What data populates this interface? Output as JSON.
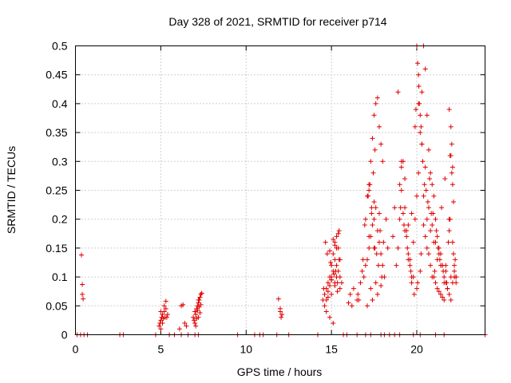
{
  "chart_data": {
    "type": "scatter",
    "title": "Day 328 of 2021, SRMTID for receiver p714",
    "xlabel": "GPS time / hours",
    "ylabel": "SRMTID / TECUs",
    "xlim": [
      0,
      24
    ],
    "ylim": [
      0,
      0.5
    ],
    "grid": true,
    "marker": "+",
    "xticks": [
      0,
      5,
      10,
      15,
      20
    ],
    "xtick_labels": [
      "0",
      "5",
      "10",
      "15",
      "20"
    ],
    "yticks": [
      0,
      0.05,
      0.1,
      0.15,
      0.2,
      0.25,
      0.3,
      0.35,
      0.4,
      0.45,
      0.5
    ],
    "ytick_labels": [
      "0",
      "0.05",
      "0.1",
      "0.15",
      "0.2",
      "0.25",
      "0.3",
      "0.35",
      "0.4",
      "0.45",
      "0.5"
    ],
    "series": [
      {
        "name": "SRMTID",
        "color": "#e00000",
        "x": [
          0.1,
          0.3,
          0.5,
          0.7,
          2.6,
          2.8,
          4.7,
          5.5,
          5.8,
          6.2,
          6.6,
          7.0,
          7.2,
          9.5,
          10.5,
          10.8,
          11.0,
          11.8,
          12.5,
          14.2,
          15.7,
          15.9,
          16.5,
          17.0,
          17.3,
          17.9,
          18.1,
          18.4,
          18.7,
          19.0,
          19.8,
          20.2,
          21.1,
          21.6,
          24.0,
          0.35,
          0.4,
          0.4,
          0.45,
          4.95,
          5.0,
          5.05,
          5.1,
          5.15,
          5.2,
          5.25,
          5.3,
          4.9,
          5.0,
          5.1,
          5.2,
          5.3,
          5.35,
          5.4,
          5.0,
          6.1,
          6.2,
          6.3,
          6.4,
          6.5,
          6.9,
          7.0,
          7.05,
          7.1,
          7.15,
          7.2,
          7.25,
          7.3,
          7.35,
          7.4,
          6.95,
          7.0,
          7.1,
          7.2,
          7.3,
          7.15,
          7.25,
          7.35,
          7.05,
          7.2,
          11.9,
          12.0,
          12.0,
          12.1,
          12.05,
          14.5,
          14.6,
          14.7,
          14.8,
          14.9,
          15.0,
          15.1,
          15.2,
          15.3,
          15.4,
          15.5,
          15.6,
          14.6,
          14.7,
          14.8,
          14.9,
          15.0,
          15.1,
          15.2,
          15.3,
          15.4,
          15.5,
          14.7,
          14.9,
          15.1,
          15.3,
          15.5,
          14.8,
          15.0,
          15.2,
          15.4,
          15.0,
          15.1,
          15.2,
          14.9,
          15.3,
          15.45,
          15.0,
          15.2,
          15.35,
          14.75,
          14.95,
          15.15,
          16.0,
          16.2,
          16.5,
          16.6,
          16.8,
          16.9,
          17.0,
          17.1,
          17.2,
          17.3,
          17.4,
          17.5,
          17.6,
          17.7,
          17.8,
          17.9,
          18.0,
          18.1,
          17.0,
          17.1,
          17.2,
          17.3,
          17.4,
          17.5,
          17.6,
          17.7,
          17.8,
          17.9,
          18.0,
          17.2,
          17.5,
          17.8,
          17.1,
          17.4,
          17.7,
          17.3,
          17.6,
          17.9,
          17.2,
          17.5,
          17.45,
          17.55,
          17.25,
          17.35,
          16.95,
          17.65,
          17.85,
          18.05,
          18.8,
          18.9,
          19.0,
          19.1,
          19.2,
          19.3,
          19.4,
          19.5,
          19.6,
          19.7,
          19.8,
          19.9,
          20.0,
          20.1,
          20.2,
          20.3,
          20.4,
          20.5,
          20.6,
          20.7,
          20.8,
          20.9,
          21.0,
          21.1,
          21.2,
          21.3,
          21.4,
          21.5,
          21.6,
          21.7,
          21.8,
          21.9,
          22.0,
          22.1,
          22.2,
          22.3,
          18.9,
          19.1,
          19.3,
          19.5,
          19.7,
          19.9,
          20.1,
          20.3,
          20.5,
          20.7,
          20.9,
          21.1,
          21.3,
          21.5,
          21.7,
          21.9,
          22.1,
          22.3,
          19.0,
          19.2,
          19.4,
          19.6,
          19.8,
          20.0,
          20.2,
          20.4,
          20.6,
          20.8,
          21.0,
          21.2,
          21.4,
          21.6,
          21.8,
          22.0,
          22.2,
          19.05,
          19.25,
          19.45,
          19.65,
          19.85,
          20.05,
          20.25,
          20.45,
          20.65,
          20.85,
          21.05,
          21.25,
          21.45,
          21.65,
          21.85,
          22.05,
          22.25,
          20.0,
          20.05,
          20.1,
          20.12,
          20.15,
          20.2,
          20.25,
          20.3,
          19.95,
          20.35,
          21.9,
          22.0,
          21.95,
          22.05,
          22.1,
          22.15,
          19.1,
          19.3,
          19.5,
          19.7,
          20.4,
          20.6,
          20.8,
          21.0,
          21.2,
          21.4,
          21.6,
          21.8,
          22.0,
          22.2,
          20.5,
          20.7,
          20.9,
          21.1,
          21.3,
          21.5,
          21.7,
          21.9,
          22.1,
          22.3,
          20.55,
          20.75,
          20.95,
          21.15,
          21.35,
          21.55,
          21.75,
          21.95,
          22.15,
          17.15,
          17.35,
          17.55,
          17.75,
          17.95,
          16.55,
          16.7,
          16.85,
          18.2,
          18.3,
          18.6,
          18.7,
          15.25,
          15.35,
          15.45,
          14.55,
          14.65,
          16.1,
          16.3
        ],
        "y": [
          0,
          0,
          0,
          0,
          0,
          0,
          0,
          0,
          0,
          0,
          0,
          0,
          0,
          0,
          0,
          0,
          0,
          0,
          0,
          0,
          0,
          0,
          0,
          0,
          0,
          0,
          0,
          0,
          0,
          0,
          0,
          0,
          0,
          0,
          0,
          0.138,
          0.087,
          0.07,
          0.062,
          0.02,
          0.025,
          0.03,
          0.035,
          0.028,
          0.04,
          0.03,
          0.045,
          0.015,
          0.01,
          0.02,
          0.05,
          0.058,
          0.03,
          0.035,
          0.04,
          0.01,
          0.05,
          0.052,
          0.02,
          0.015,
          0.03,
          0.04,
          0.035,
          0.045,
          0.05,
          0.055,
          0.06,
          0.065,
          0.07,
          0.072,
          0.025,
          0.02,
          0.028,
          0.03,
          0.038,
          0.042,
          0.048,
          0.052,
          0.015,
          0.06,
          0.062,
          0.045,
          0.04,
          0.035,
          0.03,
          0.06,
          0.07,
          0.08,
          0.09,
          0.1,
          0.12,
          0.14,
          0.16,
          0.17,
          0.15,
          0.1,
          0.09,
          0.05,
          0.06,
          0.075,
          0.085,
          0.095,
          0.11,
          0.13,
          0.15,
          0.175,
          0.13,
          0.04,
          0.03,
          0.02,
          0.12,
          0.08,
          0.065,
          0.07,
          0.09,
          0.11,
          0.1,
          0.165,
          0.155,
          0.145,
          0.1,
          0.18,
          0.095,
          0.085,
          0.075,
          0.14,
          0.125,
          0.105,
          0.055,
          0.05,
          0.06,
          0.06,
          0.11,
          0.1,
          0.12,
          0.13,
          0.15,
          0.17,
          0.19,
          0.2,
          0.22,
          0.18,
          0.16,
          0.14,
          0.12,
          0.1,
          0.2,
          0.24,
          0.26,
          0.3,
          0.34,
          0.38,
          0.4,
          0.41,
          0.36,
          0.33,
          0.3,
          0.25,
          0.23,
          0.21,
          0.05,
          0.06,
          0.07,
          0.08,
          0.09,
          0.085,
          0.17,
          0.15,
          0.28,
          0.32,
          0.26,
          0.22,
          0.19,
          0.14,
          0.18,
          0.16,
          0.12,
          0.15,
          0.2,
          0.25,
          0.3,
          0.22,
          0.18,
          0.14,
          0.12,
          0.1,
          0.16,
          0.2,
          0.24,
          0.28,
          0.35,
          0.42,
          0.5,
          0.46,
          0.38,
          0.32,
          0.28,
          0.26,
          0.24,
          0.2,
          0.17,
          0.15,
          0.14,
          0.12,
          0.1,
          0.09,
          0.08,
          0.07,
          0.06,
          0.09,
          0.11,
          0.1,
          0.42,
          0.3,
          0.27,
          0.19,
          0.21,
          0.36,
          0.4,
          0.33,
          0.29,
          0.22,
          0.19,
          0.16,
          0.14,
          0.12,
          0.11,
          0.2,
          0.29,
          0.1,
          0.26,
          0.21,
          0.17,
          0.13,
          0.1,
          0.08,
          0.11,
          0.24,
          0.2,
          0.18,
          0.16,
          0.13,
          0.12,
          0.09,
          0.08,
          0.31,
          0.1,
          0.22,
          0.19,
          0.15,
          0.11,
          0.07,
          0.09,
          0.14,
          0.26,
          0.23,
          0.21,
          0.11,
          0.15,
          0.22,
          0.27,
          0.16,
          0.33,
          0.13,
          0.5,
          0.47,
          0.45,
          0.43,
          0.4,
          0.38,
          0.36,
          0.33,
          0.39,
          0.3,
          0.39,
          0.36,
          0.31,
          0.28,
          0.26,
          0.23,
          0.29,
          0.18,
          0.13,
          0.09,
          0.19,
          0.15,
          0.12,
          0.1,
          0.08,
          0.07,
          0.06,
          0.08,
          0.1,
          0.12,
          0.17,
          0.14,
          0.1,
          0.09,
          0.075,
          0.065,
          0.12,
          0.18,
          0.16,
          0.09,
          0.25,
          0.27,
          0.21,
          0.18,
          0.13,
          0.11,
          0.09,
          0.2,
          0.14,
          0.24,
          0.21,
          0.15,
          0.12,
          0.1,
          0.07,
          0.09,
          0.13,
          0.2,
          0.15,
          0.17,
          0.22,
          0.11,
          0.09,
          0.13,
          0.08,
          0.16,
          0.07,
          0.08
        ]
      }
    ]
  }
}
